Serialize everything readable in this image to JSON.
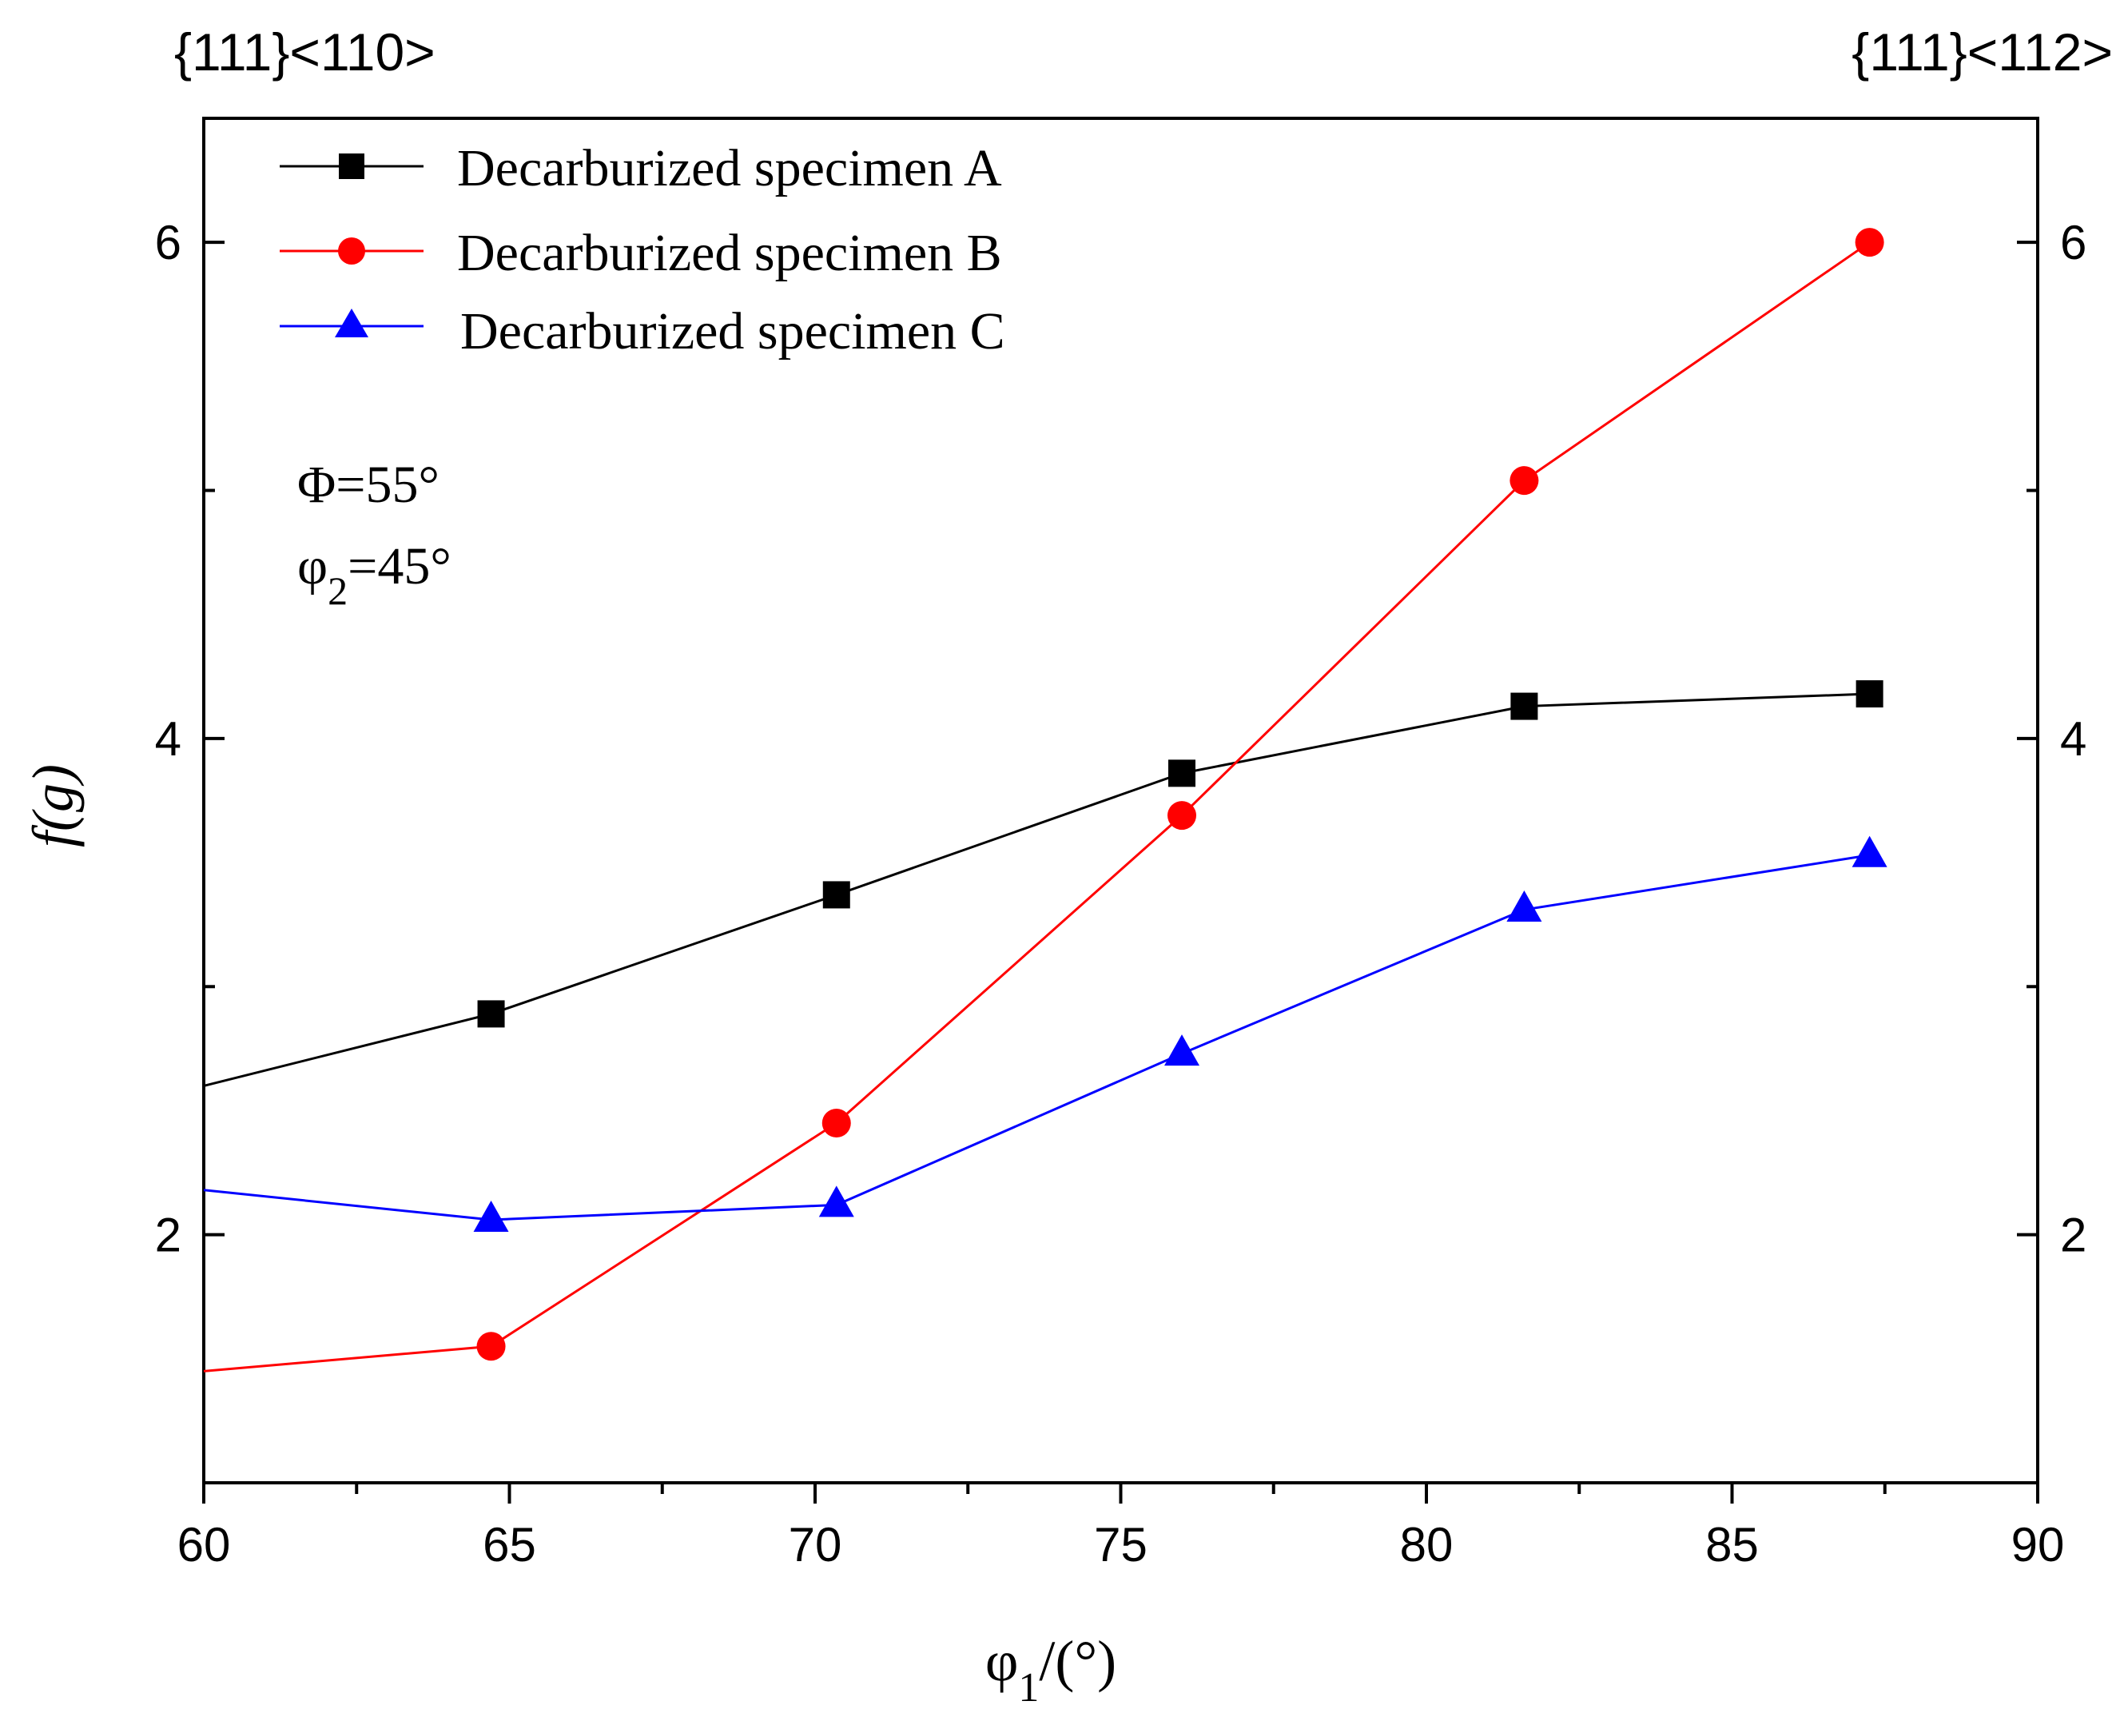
{
  "chart_data": {
    "type": "line",
    "title": "",
    "xlabel": "φ1/(°)",
    "xlabel_main": "φ",
    "xlabel_sub": "1",
    "xlabel_rest": "/(°)",
    "ylabel": "f(g)",
    "xlim": [
      60,
      90
    ],
    "ylim": [
      1.0,
      6.5
    ],
    "x_ticks": [
      60,
      65,
      70,
      75,
      80,
      85,
      90
    ],
    "x_tick_labels": [
      "60",
      "65",
      "70",
      "75",
      "80",
      "85",
      "90"
    ],
    "y_ticks": [
      2,
      4,
      6
    ],
    "y_tick_labels": [
      "2",
      "4",
      "6"
    ],
    "y_right_tick_labels": [
      "2",
      "4",
      "6"
    ],
    "corner_labels": {
      "left": "{111}<110>",
      "right": "{111}<112>"
    },
    "annotations": {
      "phi_big": "Φ=55°",
      "phi2_main": "φ",
      "phi2_sub": "2",
      "phi2_rest": "=45°"
    },
    "legend_position": "top-left",
    "grid": false,
    "series": [
      {
        "name": "Decarburized specimen A",
        "color": "#000000",
        "marker": "square",
        "line_start": [
          60,
          2.6
        ],
        "x": [
          64.7,
          70.35,
          76.0,
          81.6,
          87.25
        ],
        "values": [
          2.89,
          3.37,
          3.86,
          4.13,
          4.18
        ]
      },
      {
        "name": "Decarburized specimen B",
        "color": "#ff0000",
        "marker": "circle",
        "line_start": [
          60,
          1.45
        ],
        "x": [
          64.7,
          70.35,
          76.0,
          81.6,
          87.25
        ],
        "values": [
          1.55,
          2.45,
          3.69,
          5.04,
          6.0
        ]
      },
      {
        "name": "Decarburized specimen C",
        "color": "#0000ff",
        "marker": "triangle",
        "line_start": [
          60,
          2.18
        ],
        "x": [
          64.7,
          70.35,
          76.0,
          81.6,
          87.25
        ],
        "values": [
          2.06,
          2.12,
          2.73,
          3.31,
          3.53
        ]
      }
    ]
  }
}
